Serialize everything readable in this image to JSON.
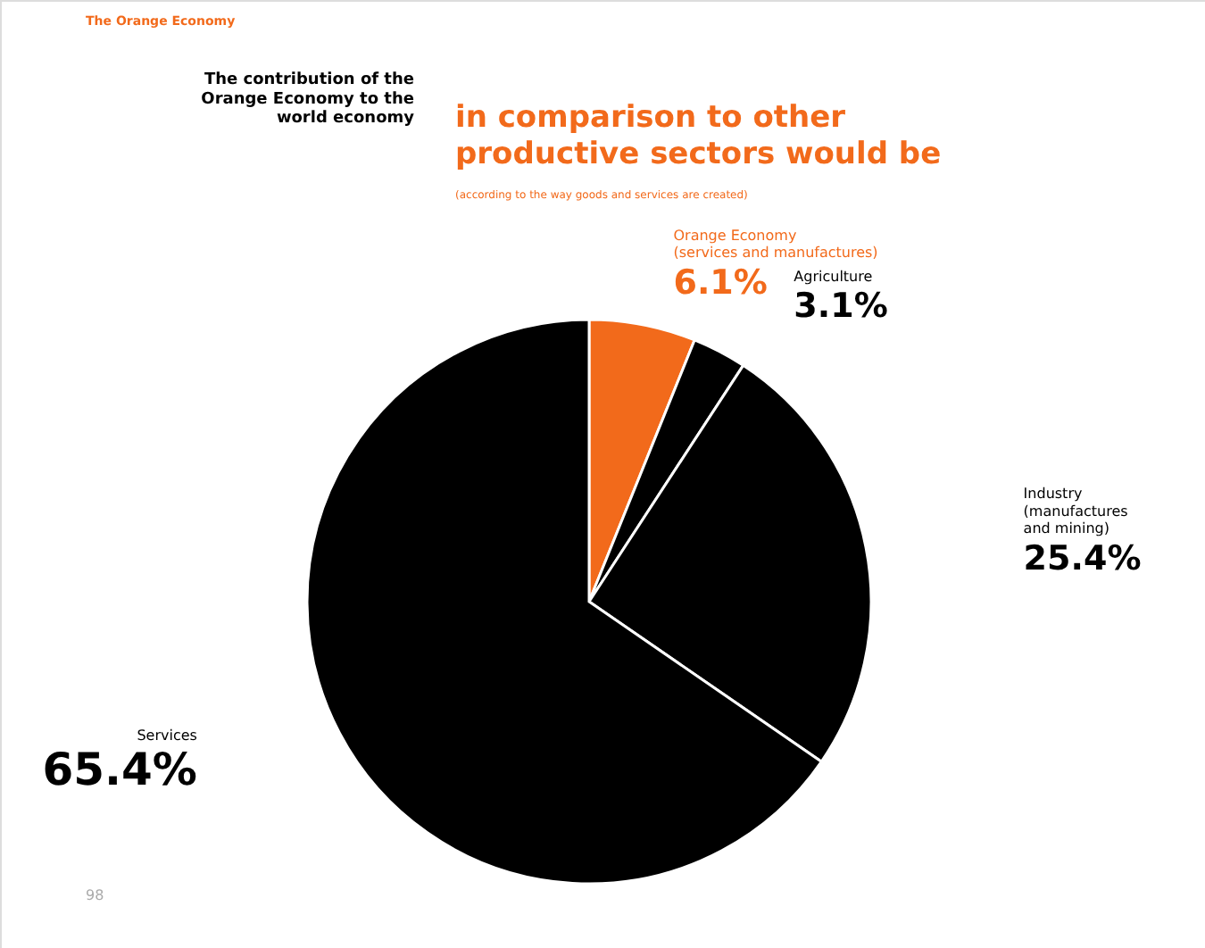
{
  "chart_data": {
    "type": "pie",
    "title": "The contribution of the Orange Economy to the world economy",
    "subtitle": "in comparison to other productive sectors would be",
    "annotations": [
      "The Orange Economy",
      "(according to the way goods and services are created)",
      "98"
    ],
    "categories": [
      "Orange Economy\n(services and manufactures)",
      "Agriculture",
      "Industry\n(manufactures\nand mining)",
      "Services"
    ],
    "values": [
      6.1,
      3.1,
      25.4,
      65.4
    ],
    "colors": [
      "#f26a1b",
      "#000000",
      "#000000",
      "#000000"
    ],
    "value_labels": [
      "6.1%",
      "3.1%",
      "25.4%",
      "65.4%"
    ]
  }
}
